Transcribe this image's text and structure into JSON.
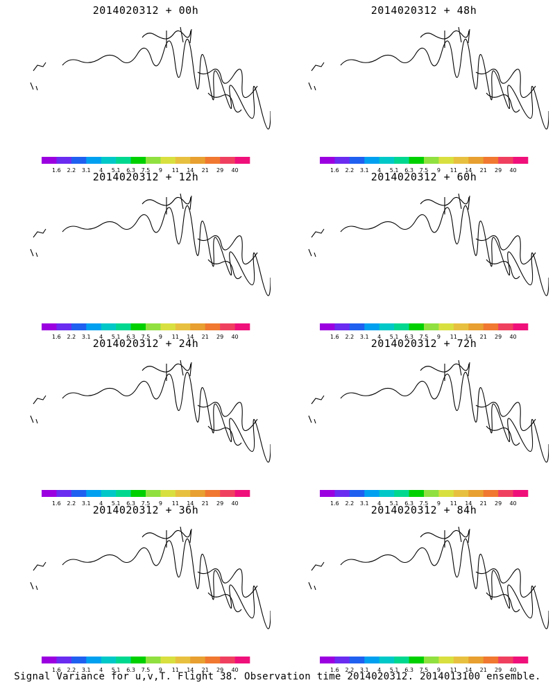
{
  "panels": [
    {
      "title": "2014020312 + 00h",
      "lead_hours": 0
    },
    {
      "title": "2014020312 + 48h",
      "lead_hours": 48
    },
    {
      "title": "2014020312 + 12h",
      "lead_hours": 12
    },
    {
      "title": "2014020312 + 60h",
      "lead_hours": 60
    },
    {
      "title": "2014020312 + 24h",
      "lead_hours": 24
    },
    {
      "title": "2014020312 + 72h",
      "lead_hours": 72
    },
    {
      "title": "2014020312 + 36h",
      "lead_hours": 36
    },
    {
      "title": "2014020312 + 84h",
      "lead_hours": 84
    }
  ],
  "colorbar": {
    "labels": [
      "1.6",
      "2.2",
      "3.1",
      "4",
      "5.1",
      "6.3",
      "7.5",
      "9",
      "11",
      "14",
      "21",
      "29",
      "40"
    ],
    "colors": [
      "#9b00e0",
      "#6a2cf0",
      "#2060f0",
      "#00a0f0",
      "#00c8c8",
      "#00d890",
      "#00d000",
      "#90e040",
      "#d8e040",
      "#e8c040",
      "#e8a030",
      "#f07830",
      "#f04060",
      "#f0107a"
    ]
  },
  "caption": "Signal Variance for u,v,T. Flight 38. Observation time 2014020312. 2014013100 ensemble."
}
